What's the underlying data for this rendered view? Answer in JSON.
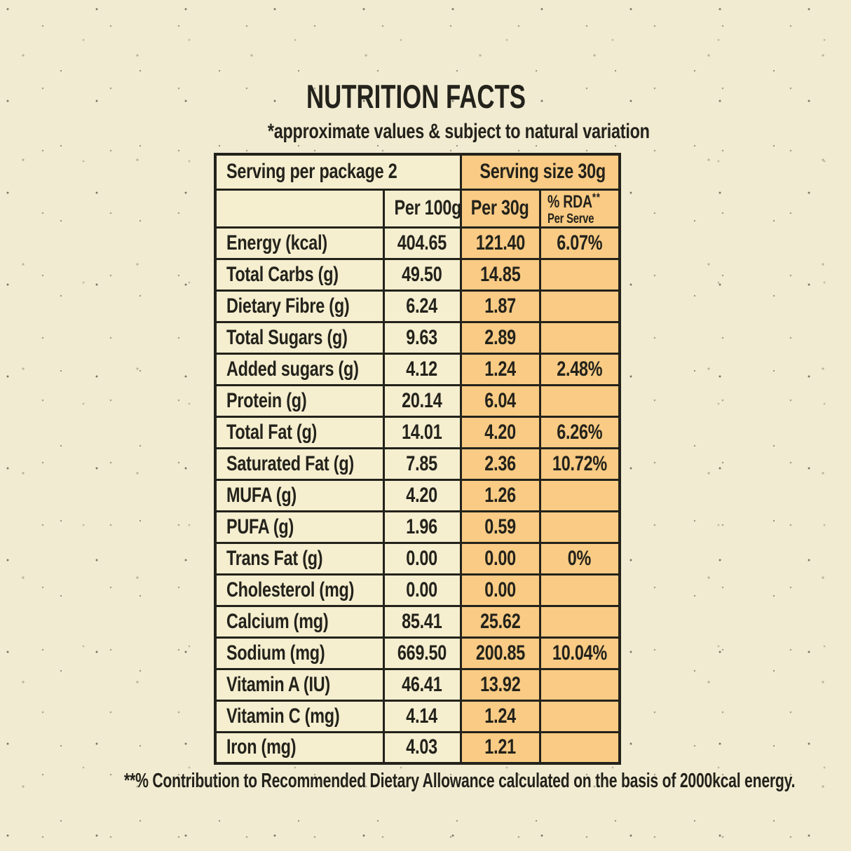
{
  "page": {
    "title": "NUTRITION FACTS",
    "subtitle": "*approximate values & subject to natural variation",
    "footnote": "**% Contribution to Recommended Dietary Allowance calculated on the basis of 2000kcal energy."
  },
  "colors": {
    "page_background": "#F1EBD1",
    "cell_cream": "#F5EECF",
    "cell_orange": "#F9CB84",
    "border": "#23221B",
    "text": "#23221B"
  },
  "table": {
    "serving_per_package": "Serving per package 2",
    "serving_size": "Serving size 30g",
    "columns": {
      "per_100g": "Per 100g",
      "per_30g": "Per 30g",
      "rda_label": "% RDA",
      "rda_sup": "**",
      "rda_sub": "Per Serve"
    },
    "rows": [
      {
        "label": "Energy (kcal)",
        "per100g": "404.65",
        "per30g": "121.40",
        "rda": "6.07%"
      },
      {
        "label": "Total Carbs (g)",
        "per100g": "49.50",
        "per30g": "14.85",
        "rda": ""
      },
      {
        "label": "Dietary Fibre (g)",
        "per100g": "6.24",
        "per30g": "1.87",
        "rda": ""
      },
      {
        "label": "Total Sugars (g)",
        "per100g": "9.63",
        "per30g": "2.89",
        "rda": ""
      },
      {
        "label": "Added sugars (g)",
        "per100g": "4.12",
        "per30g": "1.24",
        "rda": "2.48%"
      },
      {
        "label": "Protein (g)",
        "per100g": "20.14",
        "per30g": "6.04",
        "rda": ""
      },
      {
        "label": "Total Fat (g)",
        "per100g": "14.01",
        "per30g": "4.20",
        "rda": "6.26%"
      },
      {
        "label": "Saturated Fat (g)",
        "per100g": "7.85",
        "per30g": "2.36",
        "rda": "10.72%"
      },
      {
        "label": "MUFA (g)",
        "per100g": "4.20",
        "per30g": "1.26",
        "rda": ""
      },
      {
        "label": "PUFA (g)",
        "per100g": "1.96",
        "per30g": "0.59",
        "rda": ""
      },
      {
        "label": "Trans Fat (g)",
        "per100g": "0.00",
        "per30g": "0.00",
        "rda": "0%"
      },
      {
        "label": "Cholesterol (mg)",
        "per100g": "0.00",
        "per30g": "0.00",
        "rda": ""
      },
      {
        "label": "Calcium (mg)",
        "per100g": "85.41",
        "per30g": "25.62",
        "rda": ""
      },
      {
        "label": "Sodium (mg)",
        "per100g": "669.50",
        "per30g": "200.85",
        "rda": "10.04%"
      },
      {
        "label": "Vitamin A (IU)",
        "per100g": "46.41",
        "per30g": "13.92",
        "rda": ""
      },
      {
        "label": "Vitamin C (mg)",
        "per100g": "4.14",
        "per30g": "1.24",
        "rda": ""
      },
      {
        "label": "Iron (mg)",
        "per100g": "4.03",
        "per30g": "1.21",
        "rda": ""
      }
    ]
  }
}
